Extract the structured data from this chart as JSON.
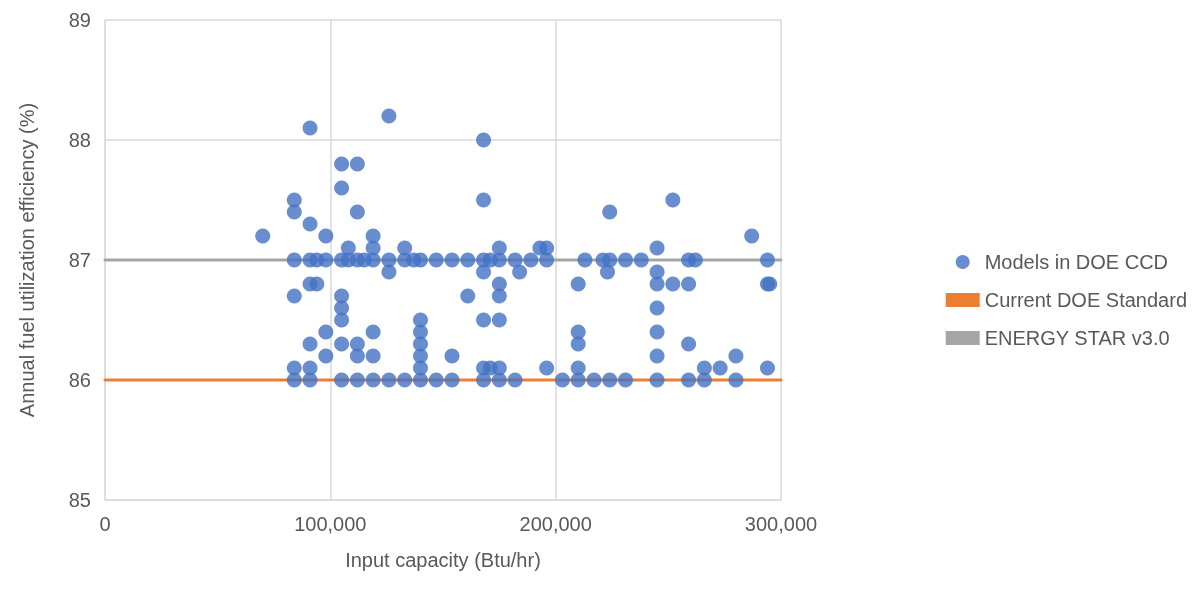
{
  "chart_data": {
    "type": "scatter",
    "xlabel": "Input capacity (Btu/hr)",
    "ylabel": "Annual fuel utilization efficiency (%)",
    "xlim": [
      0,
      300000
    ],
    "xticks": [
      0,
      {
        "value": 100000,
        "label": "100,000"
      },
      {
        "value": 200000,
        "label": "200,000"
      },
      {
        "value": 300000,
        "label": "300,000"
      }
    ],
    "ylim": [
      85,
      89
    ],
    "yticks": [
      85,
      86,
      87,
      88,
      89
    ],
    "grid": true,
    "legend": "right",
    "marker": "circle",
    "series": [
      {
        "name": "Models in DOE CCD",
        "type": "scatter",
        "color": "#4472c4",
        "x": [
          70000,
          84000,
          84000,
          84000,
          84000,
          84000,
          84000,
          91000,
          91000,
          91000,
          91000,
          91000,
          91000,
          91000,
          94000,
          94000,
          98000,
          98000,
          98000,
          98000,
          105000,
          105000,
          105000,
          105000,
          105000,
          105000,
          105000,
          105000,
          108000,
          108000,
          112000,
          112000,
          112000,
          112000,
          112000,
          112000,
          115000,
          119000,
          119000,
          119000,
          119000,
          119000,
          119000,
          126000,
          126000,
          126000,
          126000,
          133000,
          133000,
          133000,
          137000,
          140000,
          140000,
          140000,
          140000,
          140000,
          140000,
          140000,
          147000,
          147000,
          154000,
          154000,
          154000,
          161000,
          161000,
          168000,
          168000,
          168000,
          168000,
          168000,
          168000,
          168000,
          171000,
          171000,
          175000,
          175000,
          175000,
          175000,
          175000,
          175000,
          175000,
          182000,
          182000,
          184000,
          189000,
          193000,
          196000,
          196000,
          196000,
          203000,
          210000,
          210000,
          210000,
          210000,
          210000,
          213000,
          217000,
          221000,
          223000,
          224000,
          224000,
          224000,
          231000,
          231000,
          238000,
          245000,
          245000,
          245000,
          245000,
          245000,
          245000,
          245000,
          252000,
          252000,
          259000,
          259000,
          259000,
          259000,
          262000,
          266000,
          266000,
          273000,
          280000,
          280000,
          287000,
          294000,
          294000,
          294000,
          295000
        ],
        "values": [
          87.2,
          87.5,
          87.4,
          87.0,
          86.7,
          86.1,
          86.0,
          88.1,
          87.3,
          87.0,
          86.8,
          86.3,
          86.1,
          86.0,
          87.0,
          86.8,
          87.2,
          87.0,
          86.4,
          86.2,
          87.8,
          87.6,
          87.0,
          86.7,
          86.6,
          86.5,
          86.3,
          86.0,
          87.1,
          87.0,
          87.8,
          87.4,
          87.0,
          86.3,
          86.2,
          86.0,
          87.0,
          87.2,
          87.1,
          87.0,
          86.4,
          86.2,
          86.0,
          88.2,
          87.0,
          86.9,
          86.0,
          87.1,
          87.0,
          86.0,
          87.0,
          87.0,
          86.5,
          86.4,
          86.3,
          86.2,
          86.1,
          86.0,
          87.0,
          86.0,
          87.0,
          86.2,
          86.0,
          87.0,
          86.7,
          88.0,
          87.5,
          87.0,
          86.9,
          86.5,
          86.1,
          86.0,
          87.0,
          86.1,
          87.1,
          87.0,
          86.8,
          86.7,
          86.5,
          86.1,
          86.0,
          87.0,
          86.0,
          86.9,
          87.0,
          87.1,
          87.1,
          87.0,
          86.1,
          86.0,
          86.8,
          86.4,
          86.3,
          86.1,
          86.0,
          87.0,
          86.0,
          87.0,
          86.9,
          87.4,
          87.0,
          86.0,
          87.0,
          86.0,
          87.0,
          87.1,
          86.9,
          86.8,
          86.6,
          86.4,
          86.2,
          86.0,
          87.5,
          86.8,
          87.0,
          86.8,
          86.3,
          86.0,
          87.0,
          86.1,
          86.0,
          86.1,
          86.2,
          86.0,
          87.2,
          87.0,
          86.8,
          86.1,
          86.8
        ]
      },
      {
        "name": "Current DOE Standard",
        "type": "line",
        "marker": "none",
        "color": "#ed7d31",
        "x": [
          0,
          300000
        ],
        "values": [
          86,
          86
        ]
      },
      {
        "name": "ENERGY STAR v3.0",
        "type": "line",
        "marker": "none",
        "color": "#a5a5a5",
        "x": [
          0,
          300000
        ],
        "values": [
          87,
          87
        ]
      }
    ]
  }
}
